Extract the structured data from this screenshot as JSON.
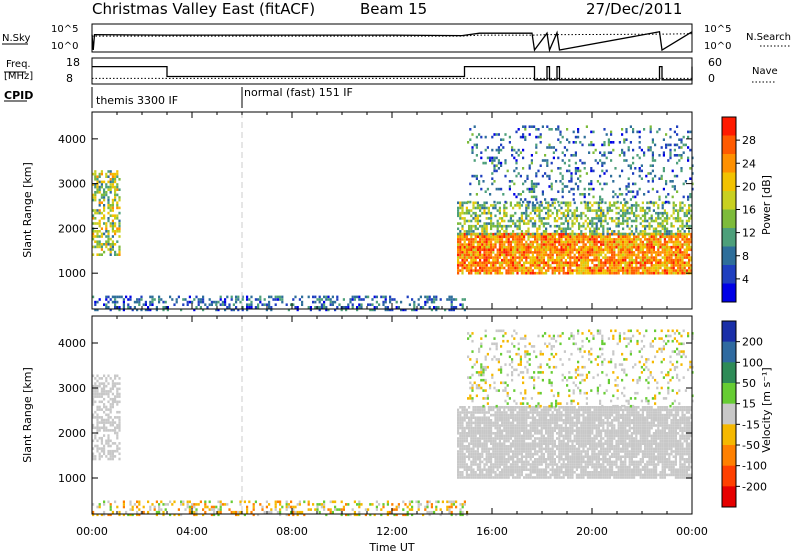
{
  "header": {
    "title": "Christmas Valley East (fitACF)",
    "beam": "Beam 15",
    "date": "27/Dec/2011"
  },
  "chart_data": [
    {
      "type": "line",
      "name": "noise",
      "ylabel_left": "N.Sky",
      "ylabel_right": "N.Search",
      "left_ticks": [
        "10^5",
        "10^0"
      ],
      "right_ticks": [
        "10^5",
        "10^0"
      ],
      "ylim": [
        0,
        5
      ],
      "x_hours": [
        0,
        0.05,
        0.1,
        3,
        6,
        9,
        12,
        14.8,
        15.5,
        17.6,
        17.7,
        18.2,
        18.3,
        18.6,
        18.7,
        22.7,
        22.8,
        24
      ],
      "sky": [
        3.2,
        0.0,
        3.2,
        3.1,
        3.1,
        3.1,
        3.1,
        3.0,
        3.5,
        3.5,
        0.0,
        3.5,
        0.0,
        3.6,
        0.0,
        3.8,
        0.0,
        3.8
      ],
      "search": [
        2.9,
        2.9,
        2.9,
        2.9,
        2.9,
        2.9,
        2.9,
        2.9,
        3.1,
        3.1,
        3.1,
        3.2,
        3.2,
        3.2,
        3.2,
        3.3,
        3.3,
        3.4
      ]
    },
    {
      "type": "line",
      "name": "frequency",
      "ylabel_left": "Freq. [MHz]",
      "ylabel_right": "Nave",
      "left_ticks": [
        "18",
        "8"
      ],
      "right_ticks": [
        "60",
        "0"
      ],
      "ylim": [
        8,
        18
      ],
      "x_hours": [
        0,
        2.9,
        3.0,
        14.8,
        14.9,
        17.6,
        17.7,
        18.2,
        18.3,
        18.6,
        18.7,
        22.7,
        22.8,
        24
      ],
      "freq": [
        15,
        15,
        10.5,
        10.5,
        15,
        15,
        9,
        15,
        9,
        15,
        9,
        15,
        9,
        15
      ],
      "nave": [
        10,
        10,
        10,
        10,
        10,
        10,
        10,
        10,
        10,
        10,
        10,
        10,
        10,
        10
      ]
    },
    {
      "type": "table",
      "name": "cpid",
      "label": "CPID",
      "segments": [
        {
          "start": 0,
          "end": 6,
          "label": "themis 3300 IF"
        },
        {
          "start": 6,
          "end": 24,
          "label": "normal (fast) 151 IF"
        }
      ]
    },
    {
      "type": "heatmap",
      "name": "power",
      "ylabel": "Slant Range [km]",
      "ylim": [
        200,
        4600
      ],
      "yticks": [
        1000,
        2000,
        3000,
        4000
      ],
      "colorbar_label": "Power [dB]",
      "colorbar_ticks": [
        "28",
        "24",
        "20",
        "16",
        "12",
        "8",
        "4"
      ],
      "colors": [
        "#0000e6",
        "#1f3fbf",
        "#2e6e9a",
        "#4d9f7a",
        "#7dbb3a",
        "#c8d020",
        "#f2c200",
        "#ff9000",
        "#ff5a00",
        "#ff1a00"
      ],
      "regions": [
        {
          "x0": 0.0,
          "x1": 1.1,
          "r0": 1400,
          "r1": 3300,
          "v0": 8,
          "v1": 24,
          "density": 0.55
        },
        {
          "x0": 0.0,
          "x1": 15.0,
          "r0": 200,
          "r1": 500,
          "v0": 2,
          "v1": 12,
          "density": 0.35
        },
        {
          "x0": 14.6,
          "x1": 24.0,
          "r0": 1000,
          "r1": 1900,
          "v0": 18,
          "v1": 30,
          "density": 0.9
        },
        {
          "x0": 14.6,
          "x1": 24.0,
          "r0": 1900,
          "r1": 2600,
          "v0": 8,
          "v1": 20,
          "density": 0.5
        },
        {
          "x0": 15.0,
          "x1": 24.0,
          "r0": 2600,
          "r1": 4300,
          "v0": 2,
          "v1": 14,
          "density": 0.18
        }
      ]
    },
    {
      "type": "heatmap",
      "name": "velocity",
      "ylabel": "Slant Range [km]",
      "ylim": [
        200,
        4600
      ],
      "yticks": [
        1000,
        2000,
        3000,
        4000
      ],
      "colorbar_label": "Velocity [m s⁻¹]",
      "colorbar_ticks": [
        "200",
        "100",
        "50",
        "15",
        "-15",
        "-50",
        "-100",
        "-200"
      ],
      "colors": [
        "#1a2fa8",
        "#2f6aa0",
        "#2e8b57",
        "#66cc33",
        "#c8c8c8",
        "#f5b800",
        "#ff8000",
        "#ff4000",
        "#e60000"
      ],
      "regions": [
        {
          "x0": 0.0,
          "x1": 1.1,
          "r0": 1400,
          "r1": 3300,
          "v0": -10,
          "v1": 10,
          "density": 0.55
        },
        {
          "x0": 0.0,
          "x1": 15.0,
          "r0": 200,
          "r1": 500,
          "v0": -120,
          "v1": 60,
          "density": 0.35
        },
        {
          "x0": 14.6,
          "x1": 24.0,
          "r0": 1000,
          "r1": 2600,
          "v0": -12,
          "v1": 12,
          "density": 0.85
        },
        {
          "x0": 15.0,
          "x1": 24.0,
          "r0": 2600,
          "r1": 4300,
          "v0": -60,
          "v1": 60,
          "density": 0.18
        }
      ]
    }
  ],
  "xaxis": {
    "label": "Time UT",
    "ticks": [
      "00:00",
      "04:00",
      "08:00",
      "12:00",
      "16:00",
      "20:00",
      "00:00"
    ],
    "xlim": [
      0,
      24
    ]
  }
}
